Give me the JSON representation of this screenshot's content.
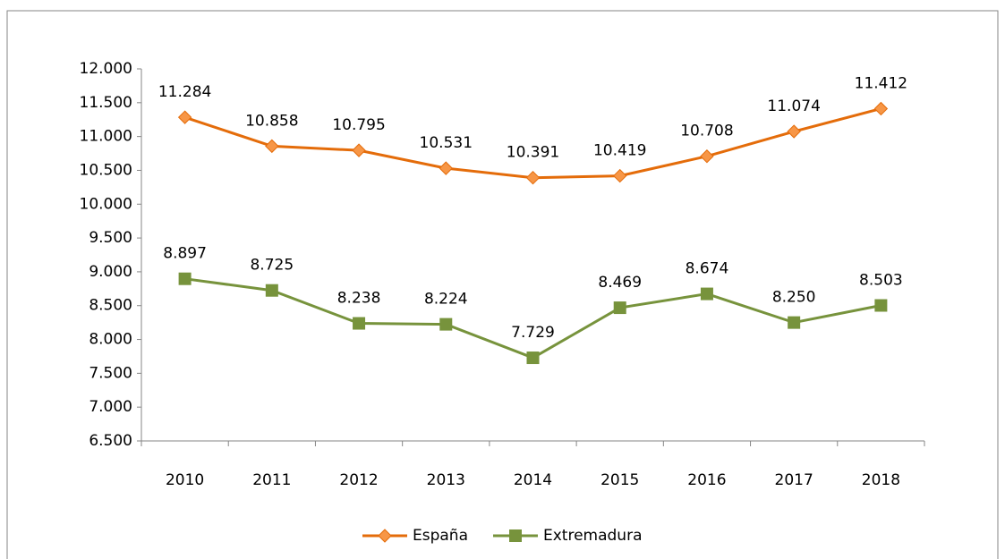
{
  "chart_data": {
    "type": "line",
    "categories": [
      "2010",
      "2011",
      "2012",
      "2013",
      "2014",
      "2015",
      "2016",
      "2017",
      "2018"
    ],
    "series": [
      {
        "name": "España",
        "color": "#E46C0A",
        "marker": "diamond",
        "values": [
          11284,
          10858,
          10795,
          10531,
          10391,
          10419,
          10708,
          11074,
          11412
        ],
        "value_labels": [
          "11.284",
          "10.858",
          "10.795",
          "10.531",
          "10.391",
          "10.419",
          "10.708",
          "11.074",
          "11.412"
        ]
      },
      {
        "name": "Extremadura",
        "color": "#77933C",
        "marker": "square",
        "values": [
          8897,
          8725,
          8238,
          8224,
          7729,
          8469,
          8674,
          8250,
          8503
        ],
        "value_labels": [
          "8.897",
          "8.725",
          "8.238",
          "8.224",
          "7.729",
          "8.469",
          "8.674",
          "8.250",
          "8.503"
        ]
      }
    ],
    "ylim": [
      6500,
      12000
    ],
    "yticks": [
      {
        "value": 6500,
        "label": "6.500"
      },
      {
        "value": 7000,
        "label": "7.000"
      },
      {
        "value": 7500,
        "label": "7.500"
      },
      {
        "value": 8000,
        "label": "8.000"
      },
      {
        "value": 8500,
        "label": "8.500"
      },
      {
        "value": 9000,
        "label": "9.000"
      },
      {
        "value": 9500,
        "label": "9.500"
      },
      {
        "value": 10000,
        "label": "10.000"
      },
      {
        "value": 10500,
        "label": "10.500"
      },
      {
        "value": 11000,
        "label": "11.000"
      },
      {
        "value": 11500,
        "label": "11.500"
      },
      {
        "value": 12000,
        "label": "12.000"
      }
    ],
    "grid": false,
    "legend": "bottom"
  }
}
